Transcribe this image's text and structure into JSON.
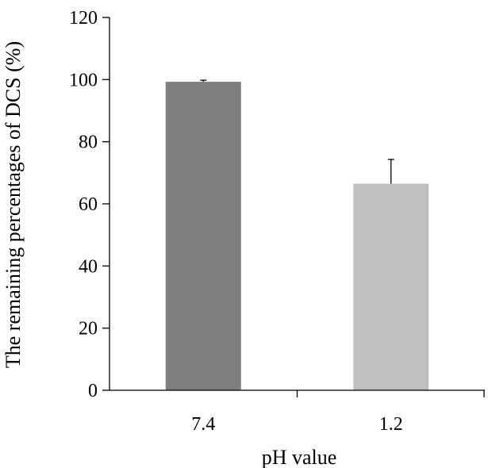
{
  "chart_data": {
    "type": "bar",
    "title": "",
    "xlabel": "pH value",
    "ylabel": "The remaining percentages of DCS (%)",
    "ylim": [
      0,
      120
    ],
    "yticks": [
      0,
      20,
      40,
      60,
      80,
      100,
      120
    ],
    "grid": false,
    "legend": "none",
    "categories": [
      "7.4",
      "1.2"
    ],
    "values": [
      99.3,
      66.5
    ],
    "error_plus": [
      0.5,
      7.8
    ],
    "colors": [
      "#7f7f7f",
      "#bfbfbf"
    ]
  }
}
